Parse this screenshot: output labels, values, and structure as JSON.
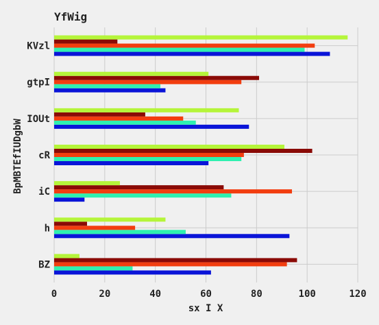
{
  "chart_data": {
    "type": "bar",
    "orientation": "horizontal",
    "title": "YfWig",
    "xlabel": "sx I X",
    "ylabel": "BpMBTEfIUDgbW",
    "xlim": [
      0,
      120
    ],
    "xticks": [
      0,
      20,
      40,
      60,
      80,
      100,
      120
    ],
    "grid": true,
    "legend": "none",
    "categories": [
      "BZ",
      "h",
      "iC",
      "cR",
      "IOUt",
      "gtpI",
      "KVzl"
    ],
    "series": [
      {
        "color": "#0a14d8",
        "values": [
          62,
          93,
          12,
          61,
          77,
          44,
          109
        ]
      },
      {
        "color": "#2ff0b0",
        "values": [
          31,
          52,
          70,
          74,
          56,
          42,
          99
        ]
      },
      {
        "color": "#f23d0f",
        "values": [
          92,
          32,
          94,
          75,
          51,
          74,
          103
        ]
      },
      {
        "color": "#8a0a06",
        "values": [
          96,
          13,
          67,
          102,
          36,
          81,
          25
        ]
      },
      {
        "color": "#b5f53a",
        "values": [
          10,
          44,
          26,
          91,
          73,
          61,
          116
        ]
      }
    ]
  }
}
